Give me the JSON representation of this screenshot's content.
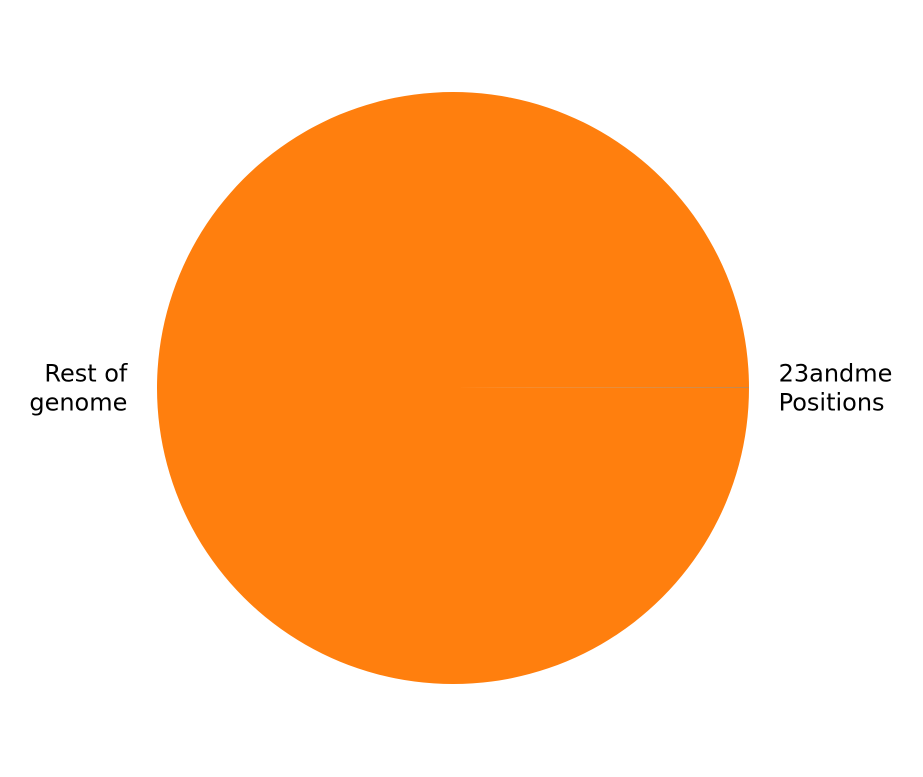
{
  "chart_data": {
    "type": "pie",
    "title": "",
    "labels": [
      "23andme Positions",
      "Rest of genome"
    ],
    "label_lines": [
      [
        "23andme",
        "Positions"
      ],
      [
        "Rest of",
        "genome"
      ]
    ],
    "values": [
      0.02,
      99.98
    ],
    "colors": [
      "#1f77b4",
      "#ff7f0e"
    ],
    "start_angle_deg": 0,
    "direction": "counterclockwise",
    "legend": false
  }
}
